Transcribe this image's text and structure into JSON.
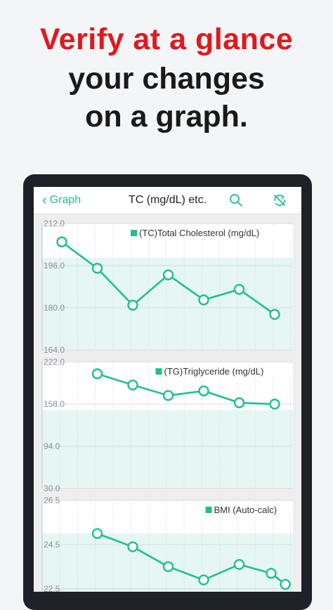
{
  "headline": {
    "line1": "Verify at a glance",
    "line2": "your changes",
    "line3": "on a graph."
  },
  "navbar": {
    "back_label": "Graph",
    "title": "TC (mg/dL) etc.",
    "search_icon": "search-icon",
    "sync_off_icon": "sync-off-icon"
  },
  "colors": {
    "accent": "#1fbf8f",
    "headline_red": "#e0191e",
    "band": "#e6f7f3"
  },
  "chart_data": [
    {
      "type": "line",
      "legend": "(TC)Total Cholesterol",
      "unit": "(mg/dL)",
      "ylim": [
        164.0,
        212.0
      ],
      "yticks": [
        "212.0",
        "196.0",
        "180.0",
        "164.0"
      ],
      "ytick_values": [
        212.0,
        196.0,
        180.0,
        164.0
      ],
      "band": [
        164.0,
        199.0
      ],
      "x": [
        1,
        2,
        3,
        4,
        5,
        6,
        7
      ],
      "values": [
        205.0,
        195.0,
        181.0,
        192.5,
        183.0,
        187.0,
        177.5
      ]
    },
    {
      "type": "line",
      "legend": "(TG)Triglyceride",
      "unit": "(mg/dL)",
      "ylim": [
        30.0,
        222.0
      ],
      "yticks": [
        "222.0",
        "158.0",
        "94.0",
        "30.0"
      ],
      "ytick_values": [
        222.0,
        158.0,
        94.0,
        30.0
      ],
      "band": [
        30.0,
        149.0
      ],
      "x": [
        2,
        3,
        4,
        5,
        6,
        7
      ],
      "values": [
        204.0,
        187.0,
        171.0,
        178.0,
        160.0,
        158.0
      ]
    },
    {
      "type": "line",
      "legend": "BMI (Auto-calc)",
      "unit": "",
      "ylim": [
        21.0,
        26.5
      ],
      "yticks": [
        "26.5",
        "24.5",
        "22.5"
      ],
      "ytick_values": [
        26.5,
        24.5,
        22.5
      ],
      "band": [
        18.5,
        25.0
      ],
      "x": [
        2,
        3,
        4,
        5,
        6,
        6.9,
        7.3
      ],
      "values": [
        25.0,
        24.4,
        23.5,
        22.9,
        23.6,
        23.2,
        22.7
      ]
    }
  ]
}
